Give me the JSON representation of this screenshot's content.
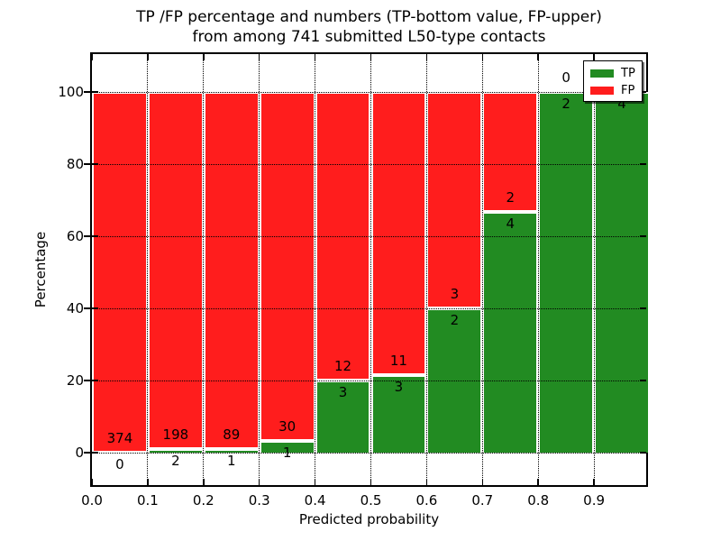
{
  "figure": {
    "title_line1": "TP /FP percentage and numbers (TP-bottom value, FP-upper)",
    "title_line2": "from among 741 submitted L50-type contacts"
  },
  "chart_data": {
    "type": "bar",
    "stacked": true,
    "title": "TP /FP percentage and numbers (TP-bottom value, FP-upper)\nfrom among 741 submitted L50-type contacts",
    "xlabel": "Predicted probability",
    "ylabel": "Percentage",
    "xlim": [
      0.0,
      1.0
    ],
    "ylim": [
      -10,
      110
    ],
    "grid": true,
    "total_contacts": 741,
    "xticks": [
      "0.0",
      "0.1",
      "0.2",
      "0.3",
      "0.4",
      "0.5",
      "0.6",
      "0.7",
      "0.8",
      "0.9"
    ],
    "yticks": [
      "0",
      "20",
      "40",
      "60",
      "80",
      "100"
    ],
    "ytick_values": [
      0,
      20,
      40,
      60,
      80,
      100
    ],
    "bins": [
      {
        "range": [
          0.0,
          0.1
        ],
        "tp": 0,
        "fp": 374,
        "tp_pct": 0.0
      },
      {
        "range": [
          0.1,
          0.2
        ],
        "tp": 2,
        "fp": 198,
        "tp_pct": 1.0
      },
      {
        "range": [
          0.2,
          0.3
        ],
        "tp": 1,
        "fp": 89,
        "tp_pct": 1.1
      },
      {
        "range": [
          0.3,
          0.4
        ],
        "tp": 1,
        "fp": 30,
        "tp_pct": 3.2
      },
      {
        "range": [
          0.4,
          0.5
        ],
        "tp": 3,
        "fp": 12,
        "tp_pct": 20.0
      },
      {
        "range": [
          0.5,
          0.6
        ],
        "tp": 3,
        "fp": 11,
        "tp_pct": 21.4
      },
      {
        "range": [
          0.6,
          0.7
        ],
        "tp": 2,
        "fp": 3,
        "tp_pct": 40.0
      },
      {
        "range": [
          0.7,
          0.8
        ],
        "tp": 4,
        "fp": 2,
        "tp_pct": 66.7
      },
      {
        "range": [
          0.8,
          0.9
        ],
        "tp": 2,
        "fp": 0,
        "tp_pct": 100.0
      },
      {
        "range": [
          0.9,
          1.0
        ],
        "tp": 4,
        "fp": 0,
        "tp_pct": 100.0,
        "fp_label_visible": false
      }
    ],
    "series": [
      {
        "name": "TP",
        "color": "#228B22",
        "position": "bottom"
      },
      {
        "name": "FP",
        "color": "#FF1D1D",
        "position": "top"
      }
    ],
    "legend": {
      "position": "upper right",
      "entries": [
        "TP",
        "FP"
      ]
    }
  },
  "colors": {
    "tp_green": "#228B22",
    "fp_red": "#FF1D1D",
    "bar_edge": "#FFFFFF",
    "grid": "#000000",
    "background": "#FFFFFF"
  }
}
